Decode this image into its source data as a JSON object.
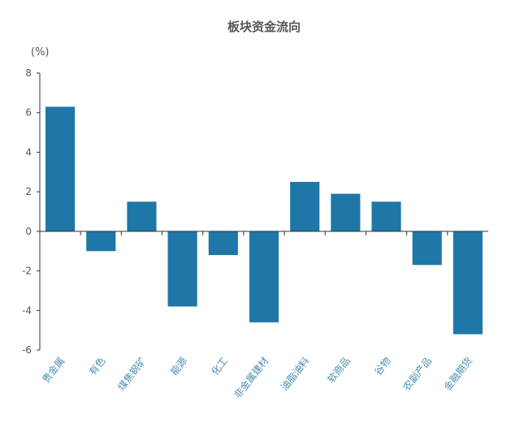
{
  "chart_data": {
    "type": "bar",
    "title": "板块资金流向",
    "ylabel": "(%)",
    "xlabel": "",
    "categories": [
      "贵金属",
      "有色",
      "煤焦钢矿",
      "能源",
      "化工",
      "非金属建材",
      "油脂油料",
      "软商品",
      "谷物",
      "农副产品",
      "金融期货"
    ],
    "values": [
      6.3,
      -1.0,
      1.5,
      -3.8,
      -1.2,
      -4.6,
      2.5,
      1.9,
      1.5,
      -1.7,
      -5.2
    ],
    "ylim": [
      -6,
      8
    ],
    "yticks": [
      8,
      6,
      4,
      2,
      0,
      -2,
      -4,
      -6
    ],
    "grid": false,
    "legend": "none",
    "colors": {
      "bar": "#1f77a8",
      "axis": "#333333",
      "tick_label_x": "#4a8fb3",
      "text": "#555555"
    }
  }
}
